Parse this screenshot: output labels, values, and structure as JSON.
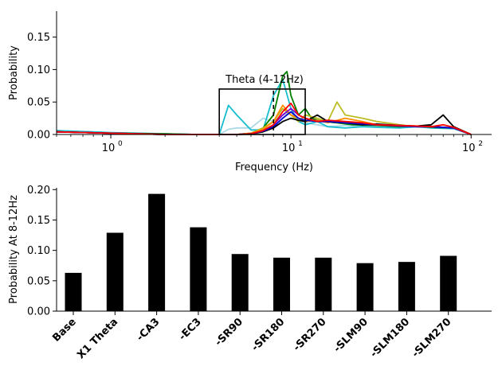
{
  "chart_data": [
    {
      "type": "line",
      "xlabel": "Frequency (Hz)",
      "ylabel": "Probability",
      "xscale": "log",
      "xlim": [
        0.5,
        130
      ],
      "ylim": [
        0,
        0.19
      ],
      "xticks": [
        1,
        10,
        100
      ],
      "xtick_labels": [
        "10",
        "10",
        "10"
      ],
      "xtick_exponents": [
        "0",
        "1",
        "2"
      ],
      "yticks": [
        0.0,
        0.05,
        0.1,
        0.15
      ],
      "ytick_labels": [
        "0.00",
        "0.05",
        "0.10",
        "0.15"
      ],
      "annotation": {
        "text": "Theta (4-12Hz)",
        "x_range": [
          4,
          12
        ],
        "height": 0.07,
        "dashed_x": 8
      },
      "series": [
        {
          "color": "#add8e6",
          "x": [
            0.5,
            1,
            2,
            3,
            4,
            4.5,
            5,
            6,
            7,
            8,
            9,
            10,
            11,
            12,
            14,
            16,
            20,
            25,
            30,
            40,
            50,
            60,
            80,
            100
          ],
          "y": [
            0.006,
            0.003,
            0.001,
            0.0,
            0.0,
            0.008,
            0.01,
            0.01,
            0.025,
            0.02,
            0.03,
            0.035,
            0.02,
            0.018,
            0.015,
            0.012,
            0.014,
            0.013,
            0.012,
            0.011,
            0.012,
            0.011,
            0.01,
            0.0
          ]
        },
        {
          "color": "#17becf",
          "x": [
            0.5,
            1,
            2,
            3,
            4,
            4.5,
            5,
            6,
            7,
            8,
            9,
            10,
            11,
            12,
            14,
            16,
            20,
            25,
            30,
            40,
            50,
            60,
            80,
            100
          ],
          "y": [
            0.006,
            0.003,
            0.001,
            0.0,
            0.0,
            0.045,
            0.03,
            0.007,
            0.007,
            0.06,
            0.085,
            0.04,
            0.02,
            0.015,
            0.02,
            0.012,
            0.01,
            0.012,
            0.011,
            0.01,
            0.012,
            0.01,
            0.009,
            0.0
          ]
        },
        {
          "color": "#008000",
          "x": [
            0.5,
            1,
            2,
            3,
            4,
            5,
            6,
            7,
            8,
            9,
            9.5,
            10,
            11,
            12,
            13,
            15,
            18,
            22,
            30,
            40,
            50,
            60,
            80,
            100
          ],
          "y": [
            0.004,
            0.002,
            0.001,
            0.0,
            0.0,
            0.0,
            0.002,
            0.01,
            0.03,
            0.09,
            0.097,
            0.06,
            0.03,
            0.04,
            0.025,
            0.02,
            0.018,
            0.015,
            0.014,
            0.012,
            0.013,
            0.011,
            0.01,
            0.0
          ]
        },
        {
          "color": "#bcbd22",
          "x": [
            0.5,
            1,
            2,
            3,
            4,
            5,
            6,
            7,
            8,
            9,
            10,
            11,
            12,
            14,
            16,
            18,
            20,
            25,
            30,
            40,
            50,
            60,
            80,
            100
          ],
          "y": [
            0.004,
            0.002,
            0.0,
            0.0,
            0.0,
            0.0,
            0.002,
            0.01,
            0.02,
            0.04,
            0.03,
            0.02,
            0.03,
            0.025,
            0.02,
            0.05,
            0.03,
            0.025,
            0.02,
            0.015,
            0.012,
            0.012,
            0.01,
            0.0
          ]
        },
        {
          "color": "#ff8c00",
          "x": [
            0.5,
            1,
            2,
            3,
            4,
            5,
            6,
            7,
            8,
            9,
            10,
            11,
            12,
            14,
            16,
            20,
            25,
            30,
            40,
            50,
            60,
            80,
            100
          ],
          "y": [
            0.004,
            0.002,
            0.0,
            0.0,
            0.0,
            0.0,
            0.002,
            0.008,
            0.02,
            0.045,
            0.03,
            0.025,
            0.02,
            0.022,
            0.018,
            0.025,
            0.02,
            0.015,
            0.014,
            0.013,
            0.012,
            0.01,
            0.0
          ]
        },
        {
          "color": "#7b00d4",
          "x": [
            0.5,
            1,
            2,
            3,
            4,
            5,
            6,
            7,
            8,
            9,
            10,
            11,
            12,
            14,
            16,
            20,
            25,
            30,
            40,
            50,
            60,
            80,
            100
          ],
          "y": [
            0.004,
            0.002,
            0.0,
            0.0,
            0.0,
            0.0,
            0.001,
            0.006,
            0.015,
            0.03,
            0.04,
            0.03,
            0.025,
            0.02,
            0.02,
            0.018,
            0.016,
            0.015,
            0.013,
            0.012,
            0.012,
            0.01,
            0.0
          ]
        },
        {
          "color": "#000000",
          "x": [
            0.5,
            1,
            2,
            3,
            4,
            5,
            6,
            7,
            8,
            9,
            10,
            11,
            12,
            14,
            16,
            20,
            25,
            30,
            40,
            50,
            60,
            70,
            80,
            100
          ],
          "y": [
            0.004,
            0.002,
            0.0,
            0.0,
            0.0,
            0.0,
            0.001,
            0.004,
            0.01,
            0.02,
            0.025,
            0.022,
            0.02,
            0.03,
            0.02,
            0.018,
            0.015,
            0.016,
            0.014,
            0.013,
            0.015,
            0.03,
            0.012,
            0.0
          ]
        },
        {
          "color": "#0000cd",
          "x": [
            0.5,
            1,
            2,
            3,
            4,
            5,
            6,
            7,
            8,
            9,
            10,
            11,
            12,
            14,
            16,
            20,
            25,
            30,
            40,
            50,
            60,
            80,
            100
          ],
          "y": [
            0.004,
            0.002,
            0.0,
            0.0,
            0.0,
            0.0,
            0.001,
            0.005,
            0.012,
            0.025,
            0.035,
            0.025,
            0.022,
            0.02,
            0.02,
            0.018,
            0.016,
            0.015,
            0.014,
            0.012,
            0.012,
            0.01,
            0.0
          ]
        },
        {
          "color": "#ff0000",
          "x": [
            0.5,
            1,
            2,
            3,
            4,
            5,
            6,
            7,
            8,
            9,
            10,
            11,
            12,
            14,
            16,
            20,
            25,
            30,
            40,
            50,
            60,
            70,
            80,
            100
          ],
          "y": [
            0.004,
            0.002,
            0.0,
            0.0,
            0.0,
            0.0,
            0.001,
            0.006,
            0.015,
            0.035,
            0.048,
            0.03,
            0.025,
            0.02,
            0.022,
            0.02,
            0.018,
            0.015,
            0.014,
            0.013,
            0.012,
            0.015,
            0.011,
            0.0
          ]
        }
      ]
    },
    {
      "type": "bar",
      "ylabel": "Probability At 8-12Hz",
      "xlabel": "",
      "categories": [
        "Base",
        "X1 Theta",
        "-CA3",
        "-EC3",
        "-SR90",
        "-SR180",
        "-SR270",
        "-SLM90",
        "-SLM180",
        "-SLM270"
      ],
      "values": [
        0.063,
        0.129,
        0.193,
        0.138,
        0.094,
        0.088,
        0.088,
        0.079,
        0.081,
        0.091
      ],
      "ylim": [
        0,
        0.203
      ],
      "yticks": [
        0.0,
        0.05,
        0.1,
        0.15,
        0.2
      ],
      "ytick_labels": [
        "0.00",
        "0.05",
        "0.10",
        "0.15",
        "0.20"
      ],
      "bar_color": "#000000"
    }
  ]
}
